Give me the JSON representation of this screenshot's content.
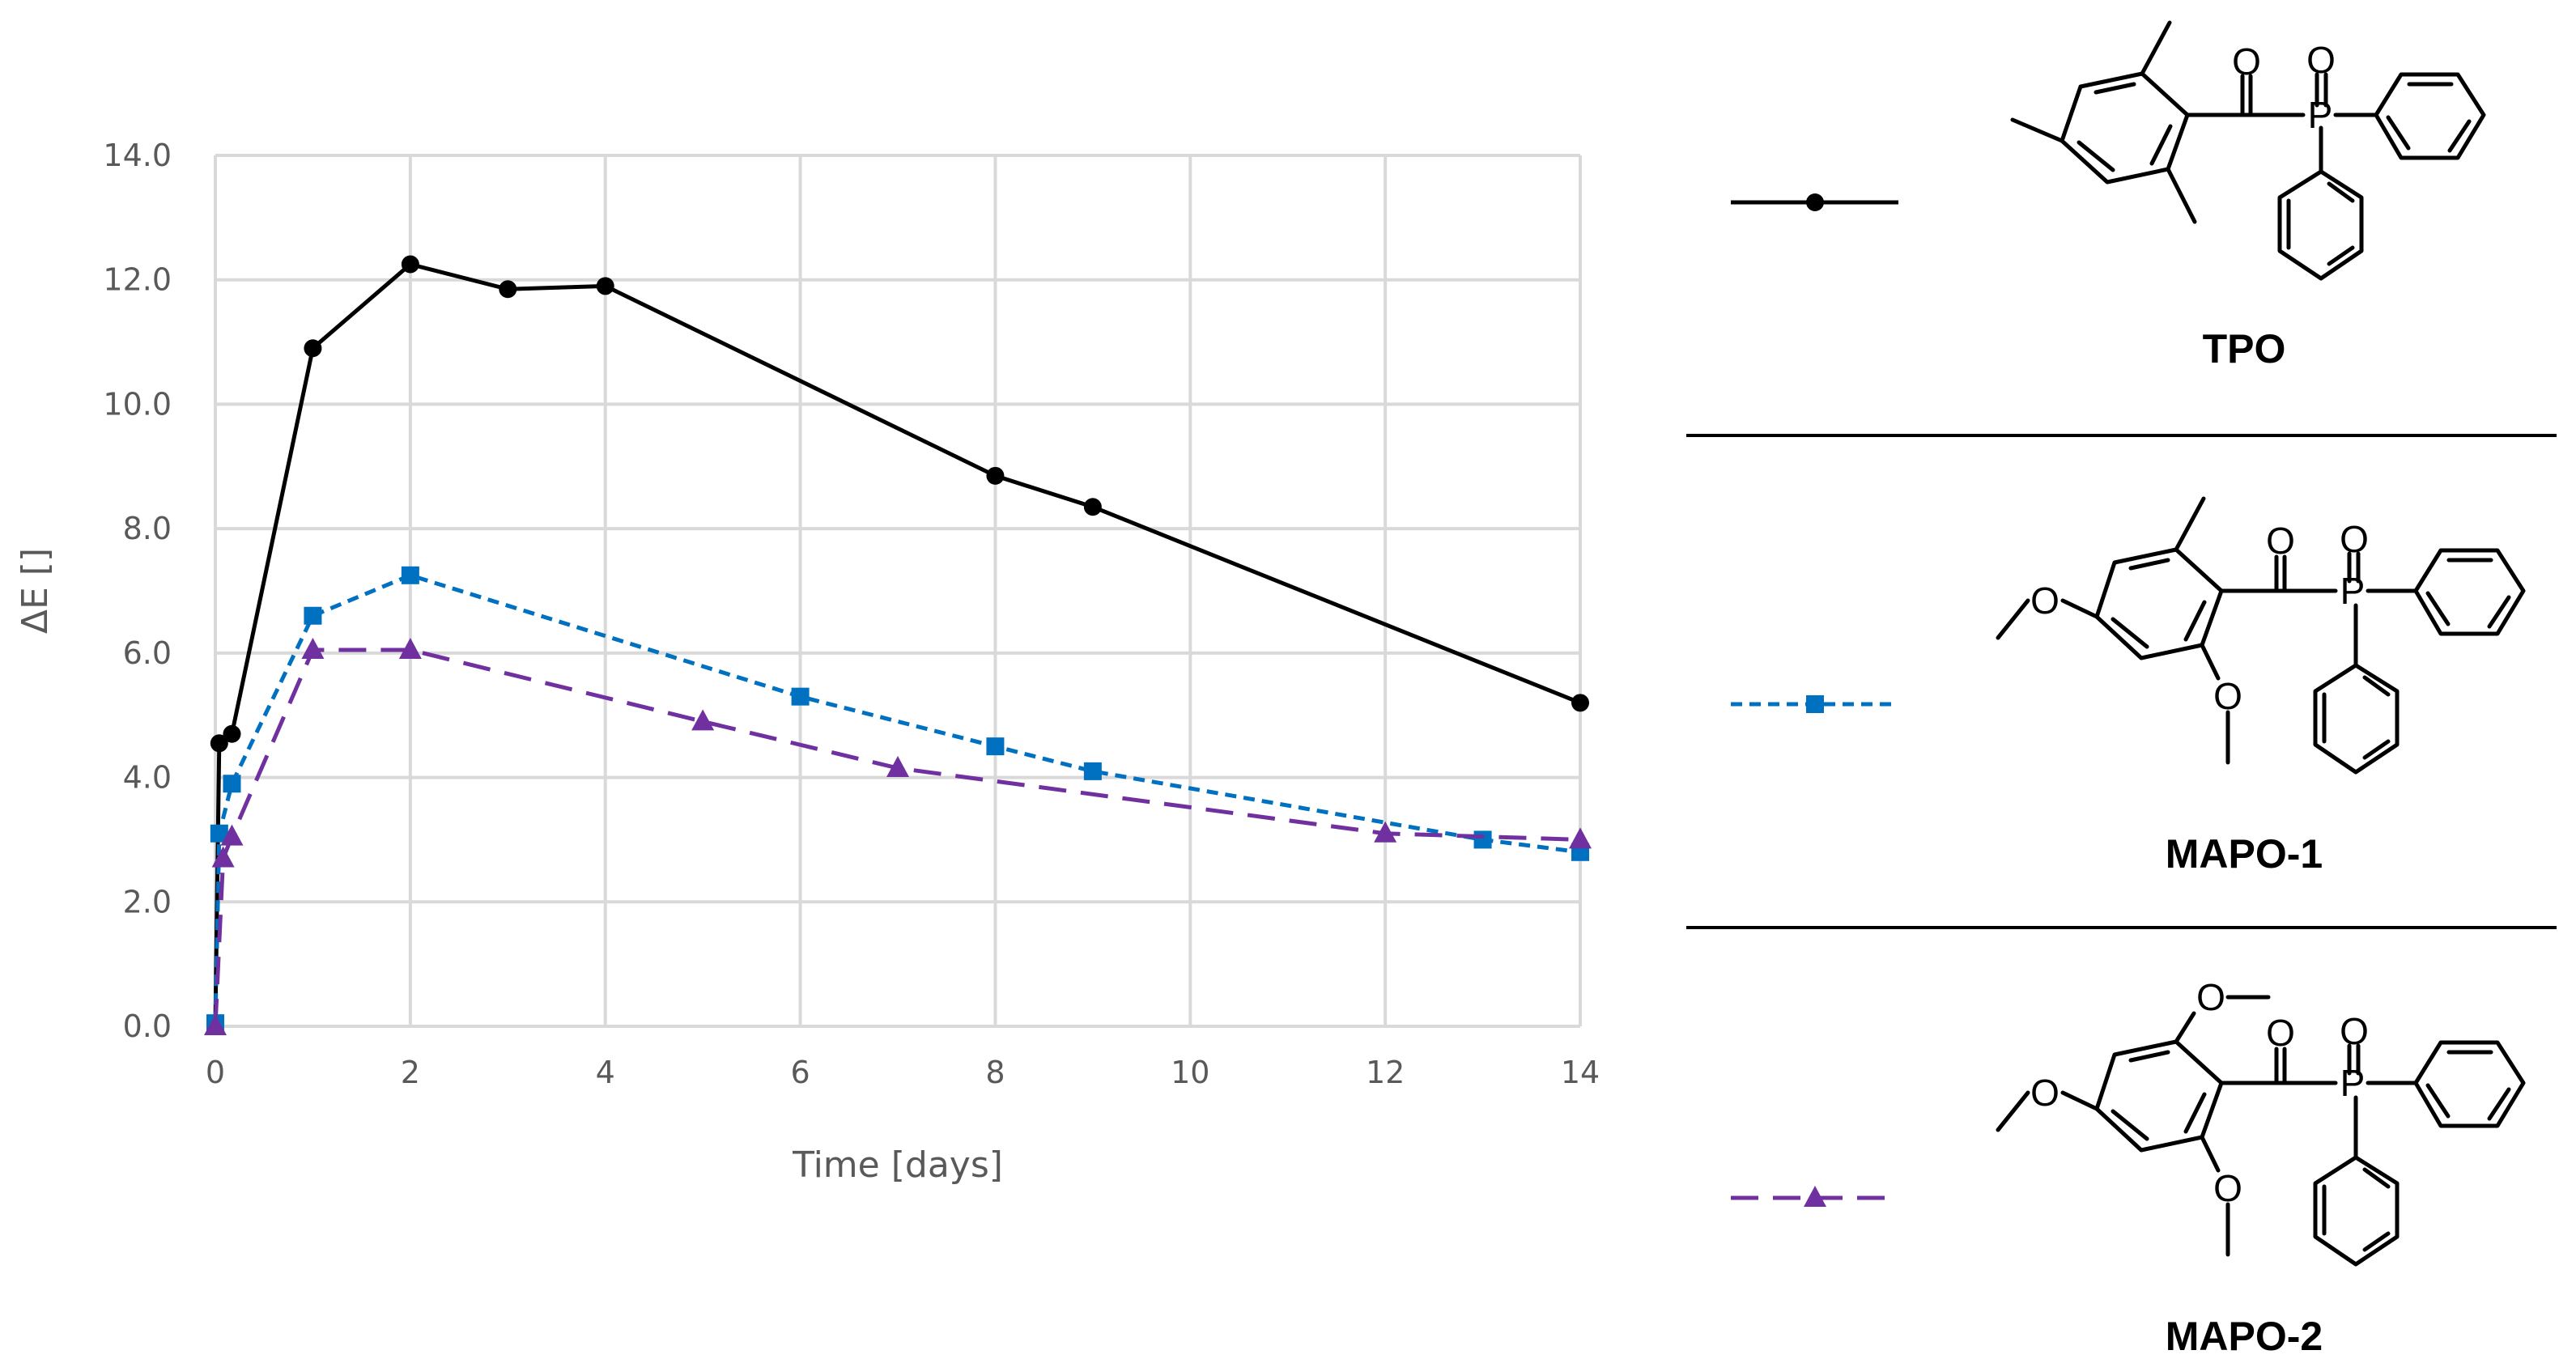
{
  "chart_data": {
    "type": "line",
    "xlabel": "Time [days]",
    "ylabel": "ΔE []",
    "xlim": [
      0,
      14
    ],
    "ylim": [
      0,
      14
    ],
    "x_ticks": [
      "0",
      "2",
      "4",
      "6",
      "8",
      "10",
      "12",
      "14"
    ],
    "y_ticks": [
      "0.0",
      "2.0",
      "4.0",
      "6.0",
      "8.0",
      "10.0",
      "12.0",
      "14.0"
    ],
    "grid": true,
    "legend_placement": "right",
    "series": [
      {
        "name": "TPO",
        "color": "#000000",
        "line_style": "solid",
        "marker": "circle",
        "points": [
          [
            0,
            0.05
          ],
          [
            0.04,
            4.55
          ],
          [
            0.17,
            4.7
          ],
          [
            1,
            10.9
          ],
          [
            2,
            12.25
          ],
          [
            3,
            11.85
          ],
          [
            4,
            11.9
          ],
          [
            8,
            8.85
          ],
          [
            9,
            8.35
          ],
          [
            14,
            5.2
          ]
        ]
      },
      {
        "name": "MAPO-1",
        "color": "#0070C0",
        "line_style": "dotted",
        "marker": "square",
        "points": [
          [
            0,
            0.05
          ],
          [
            0.04,
            3.1
          ],
          [
            0.17,
            3.9
          ],
          [
            1,
            6.6
          ],
          [
            2,
            7.25
          ],
          [
            6,
            5.3
          ],
          [
            8,
            4.5
          ],
          [
            9,
            4.1
          ],
          [
            13,
            3.0
          ],
          [
            14,
            2.8
          ]
        ]
      },
      {
        "name": "MAPO-2",
        "color": "#7030A0",
        "line_style": "dashed",
        "marker": "triangle",
        "points": [
          [
            0,
            0.0
          ],
          [
            0.08,
            2.7
          ],
          [
            0.17,
            3.05
          ],
          [
            1,
            6.05
          ],
          [
            2,
            6.05
          ],
          [
            5,
            4.9
          ],
          [
            7,
            4.15
          ],
          [
            12,
            3.1
          ],
          [
            14,
            3.0
          ]
        ]
      }
    ]
  },
  "legend": {
    "items": [
      {
        "label": "TPO",
        "color": "#000000"
      },
      {
        "label": "MAPO-1",
        "color": "#0070C0"
      },
      {
        "label": "MAPO-2",
        "color": "#7030A0"
      }
    ],
    "atom_labels": {
      "oxygen": "O",
      "phosphorus": "P"
    }
  }
}
